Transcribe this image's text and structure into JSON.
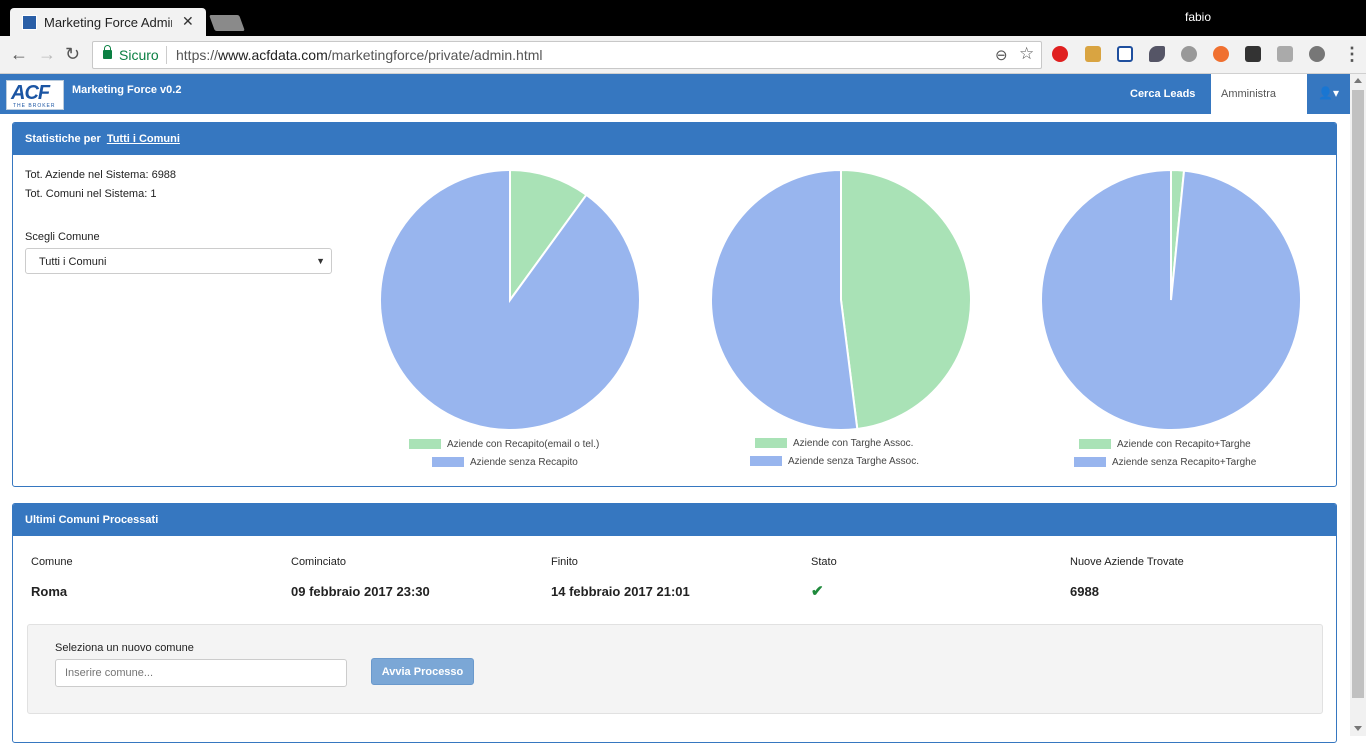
{
  "browser": {
    "tab_title": "Marketing Force Adminis",
    "user": "fabio",
    "secure_label": "Sicuro",
    "url_prefix": "https://",
    "url_host": "www.acfdata.com",
    "url_path": "/marketingforce/private/admin.html"
  },
  "navbar": {
    "logo_text": "ACF",
    "logo_subtext": "THE BROKER",
    "brand": "Marketing Force v0.2",
    "link_search": "Cerca Leads",
    "link_admin": "Amministra"
  },
  "stats": {
    "heading": "Statistiche per",
    "heading_link": "Tutti i Comuni",
    "tot_aziende": "Tot. Aziende nel Sistema: 6988",
    "tot_comuni": "Tot. Comuni nel Sistema: 1",
    "select_label": "Scegli Comune",
    "select_value": "Tutti i Comuni"
  },
  "colors": {
    "green": "#a9e2b6",
    "blue": "#98b5ee",
    "primary": "#3677c0"
  },
  "chart_data": [
    {
      "type": "pie",
      "series": [
        {
          "name": "Aziende con Recapito(email o tel.)",
          "value": 10,
          "color": "#a9e2b6"
        },
        {
          "name": "Aziende senza Recapito",
          "value": 90,
          "color": "#98b5ee"
        }
      ]
    },
    {
      "type": "pie",
      "series": [
        {
          "name": "Aziende con Targhe Assoc.",
          "value": 48,
          "color": "#a9e2b6"
        },
        {
          "name": "Aziende senza Targhe Assoc.",
          "value": 52,
          "color": "#98b5ee"
        }
      ]
    },
    {
      "type": "pie",
      "series": [
        {
          "name": "Aziende con Recapito+Targhe",
          "value": 1.6,
          "color": "#a9e2b6"
        },
        {
          "name": "Aziende senza Recapito+Targhe",
          "value": 98.4,
          "color": "#98b5ee"
        }
      ]
    }
  ],
  "last": {
    "heading": "Ultimi Comuni Processati",
    "columns": [
      "Comune",
      "Cominciato",
      "Finito",
      "Stato",
      "Nuove Aziende Trovate"
    ],
    "row": {
      "comune": "Roma",
      "cominciato": "09 febbraio 2017 23:30",
      "finito": "14 febbraio 2017 21:01",
      "stato": "check-icon",
      "nuove": "6988"
    },
    "new_label": "Seleziona un nuovo comune",
    "new_placeholder": "Inserire comune...",
    "button": "Avvia Processo"
  }
}
